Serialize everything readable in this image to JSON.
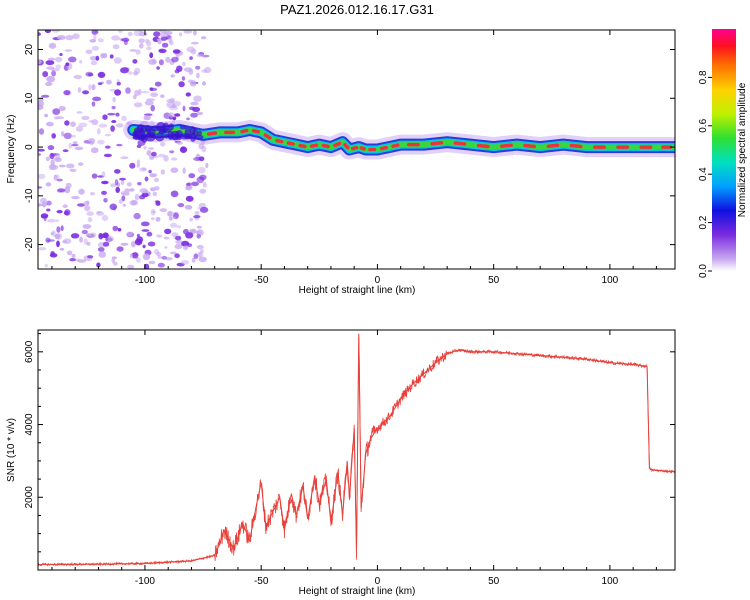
{
  "title": "PAZ1.2026.012.16.17.G31",
  "colors": {
    "snr_line": "#e8403a",
    "scatter": "#7a2be0",
    "scatter_light": "#c9aaf2",
    "track_core": "#e8343c",
    "track_mid": "#3cd63c",
    "track_outer": "#2b3bd8"
  },
  "chart_data": [
    {
      "id": "spectrogram",
      "type": "heatmap",
      "xlabel": "Height of straight line (km)",
      "ylabel": "Frequency (Hz)",
      "xlim": [
        -146,
        128
      ],
      "ylim": [
        -25,
        24
      ],
      "xticks": [
        -100,
        -50,
        0,
        50,
        100
      ],
      "yticks": [
        -20,
        -10,
        0,
        10,
        20
      ],
      "noise_region_x": [
        -146,
        -73
      ],
      "signal_track": {
        "x": [
          -105,
          -95,
          -85,
          -75,
          -68,
          -60,
          -55,
          -50,
          -45,
          -40,
          -35,
          -30,
          -25,
          -20,
          -15,
          -12,
          -8,
          -5,
          0,
          5,
          10,
          20,
          30,
          40,
          50,
          60,
          70,
          80,
          90,
          100,
          110,
          120,
          128
        ],
        "freq": [
          3.5,
          3.0,
          3.5,
          2.5,
          3.0,
          3.0,
          3.5,
          3.0,
          1.5,
          1.0,
          0.5,
          0.0,
          0.5,
          0.0,
          1.0,
          -0.5,
          0.0,
          -0.5,
          -0.5,
          0.0,
          0.5,
          0.5,
          1.0,
          0.5,
          0.0,
          0.5,
          0.0,
          0.5,
          0.0,
          0.0,
          0.0,
          0.0,
          0.0
        ]
      },
      "colorbar": {
        "label": "Normalized spectral amplitude",
        "ticks": [
          "0.0",
          "0.2",
          "0.4",
          "0.6",
          "0.8"
        ],
        "range": [
          0,
          1
        ]
      }
    },
    {
      "id": "snr",
      "type": "line",
      "xlabel": "Height of straight line (km)",
      "ylabel": "SNR (10 * v/v)",
      "xlim": [
        -146,
        128
      ],
      "ylim": [
        0,
        6600
      ],
      "xticks": [
        -100,
        -50,
        0,
        50,
        100
      ],
      "yticks": [
        2000,
        4000,
        6000
      ],
      "series": [
        {
          "name": "SNR",
          "x": [
            -146,
            -120,
            -100,
            -80,
            -70,
            -68,
            -66,
            -62,
            -60,
            -58,
            -55,
            -52,
            -50,
            -48,
            -45,
            -42,
            -40,
            -37,
            -35,
            -32,
            -30,
            -27,
            -25,
            -22,
            -20,
            -17,
            -15,
            -13,
            -12,
            -10,
            -9,
            -8,
            -7,
            -5,
            -3,
            0,
            5,
            10,
            15,
            20,
            25,
            30,
            35,
            40,
            50,
            60,
            70,
            80,
            90,
            100,
            110,
            116,
            117,
            118,
            128
          ],
          "y": [
            150,
            160,
            180,
            250,
            400,
            700,
            1100,
            600,
            900,
            1300,
            800,
            1800,
            2400,
            1200,
            1600,
            2000,
            1100,
            2100,
            1500,
            2300,
            1400,
            2600,
            1800,
            2500,
            1300,
            2700,
            1500,
            3000,
            2000,
            3900,
            500,
            6500,
            1700,
            3200,
            3600,
            3900,
            4200,
            4700,
            5100,
            5400,
            5700,
            5950,
            6050,
            6000,
            6000,
            5950,
            5900,
            5850,
            5800,
            5700,
            5650,
            5600,
            2800,
            2750,
            2700
          ]
        }
      ]
    }
  ]
}
